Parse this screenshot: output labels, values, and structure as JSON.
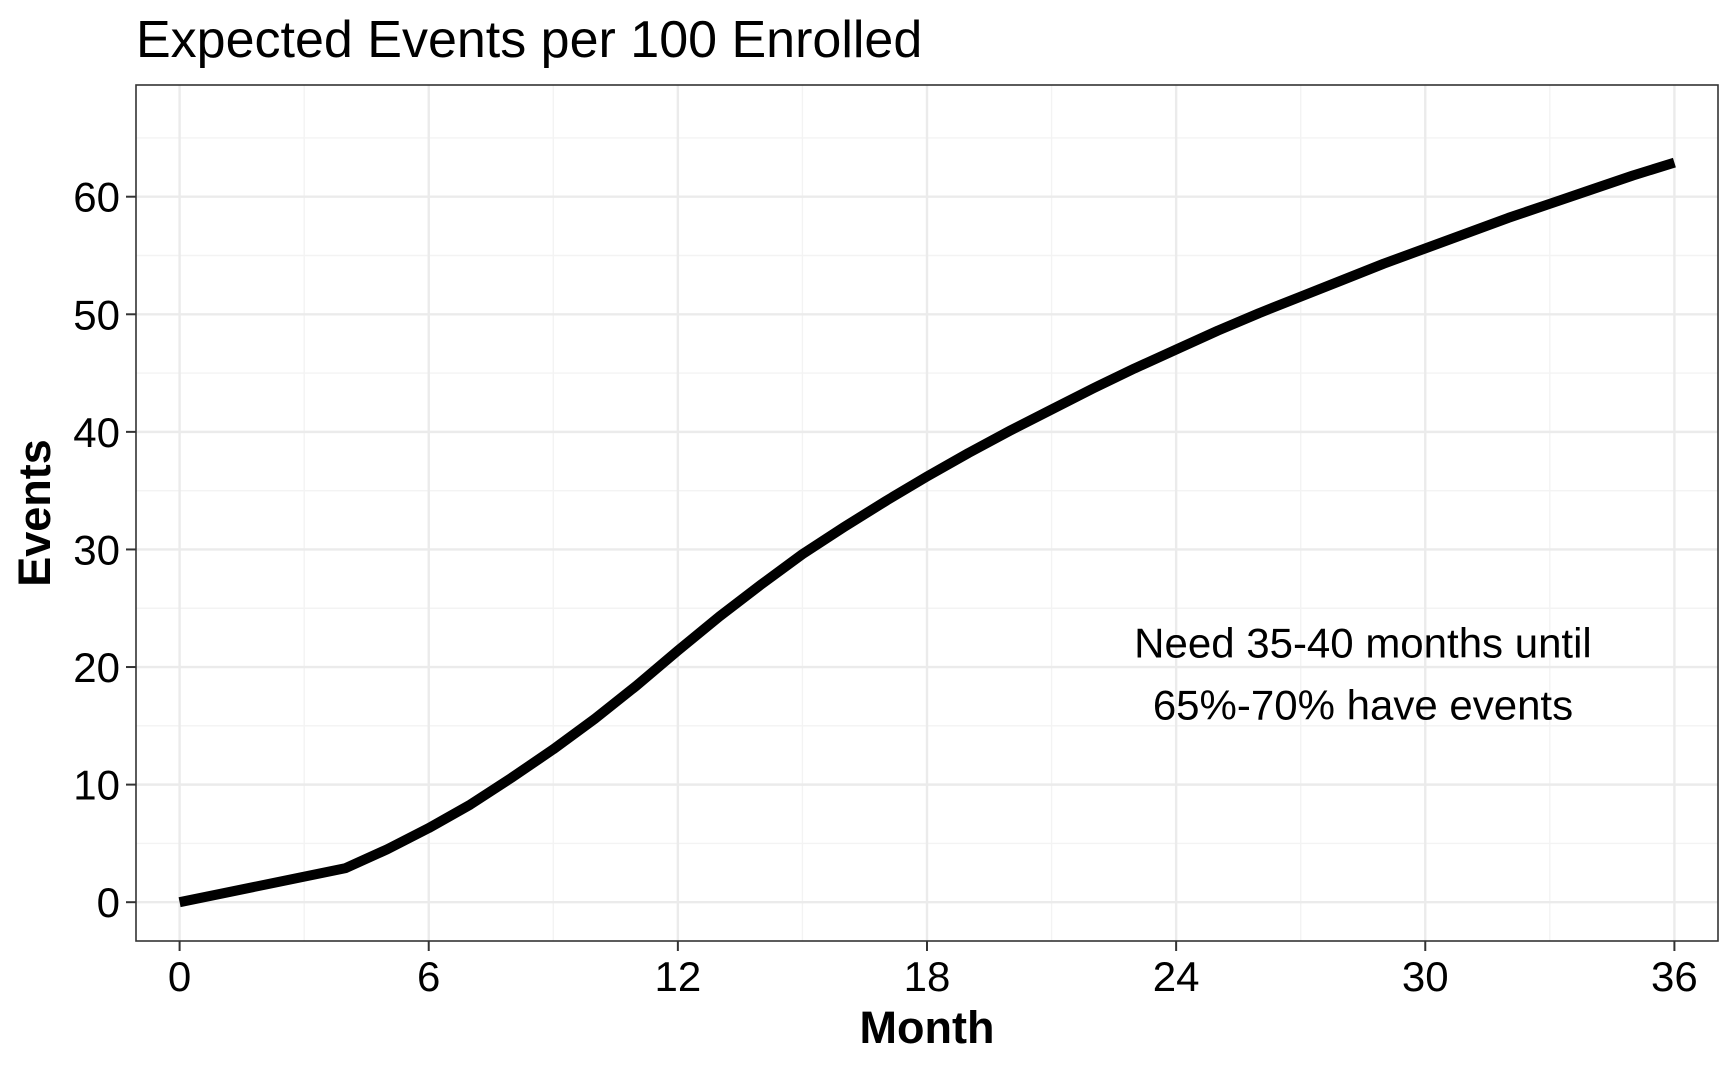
{
  "chart_data": {
    "type": "line",
    "title": "Expected Events per 100 Enrolled",
    "xlabel": "Month",
    "ylabel": "Events",
    "xlim": [
      -1.05,
      37.05
    ],
    "ylim": [
      -3.3,
      69.5
    ],
    "x_ticks": [
      0,
      6,
      12,
      18,
      24,
      30,
      36
    ],
    "x_tick_labels": [
      "0",
      "6",
      "12",
      "18",
      "24",
      "30",
      "36"
    ],
    "y_ticks": [
      0,
      10,
      20,
      30,
      40,
      50,
      60
    ],
    "y_tick_labels": [
      "0",
      "10",
      "20",
      "30",
      "40",
      "50",
      "60"
    ],
    "grid": true,
    "legend": "none",
    "series": [
      {
        "color": "#000000",
        "x": [
          0,
          4,
          5,
          6,
          7,
          8,
          9,
          10,
          11,
          12,
          13,
          14,
          15,
          16,
          17,
          18,
          19,
          20,
          21,
          22,
          23,
          24,
          25,
          26,
          27,
          28,
          29,
          30,
          31,
          32,
          33,
          34,
          35,
          36
        ],
        "y": [
          0,
          2.9,
          4.5,
          6.3,
          8.3,
          10.6,
          13.0,
          15.6,
          18.4,
          21.4,
          24.3,
          27.0,
          29.6,
          31.9,
          34.1,
          36.2,
          38.2,
          40.1,
          41.9,
          43.7,
          45.4,
          47.0,
          48.6,
          50.1,
          51.5,
          52.9,
          54.3,
          55.6,
          56.9,
          58.2,
          59.4,
          60.6,
          61.8,
          62.9
        ]
      }
    ],
    "annotations": [
      {
        "lines": [
          "Need 35-40 months until",
          "65%-70% have events"
        ],
        "x": 28.5,
        "y": 20.8
      }
    ]
  }
}
